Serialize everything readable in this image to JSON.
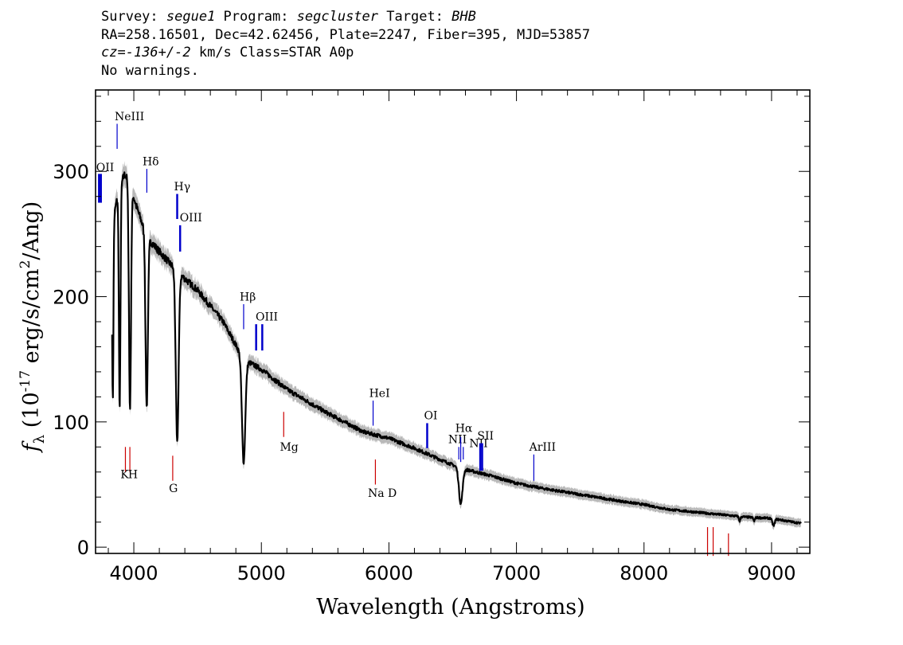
{
  "header": {
    "line1": {
      "survey_label": "Survey: ",
      "survey": "segue1",
      "program_label": " Program: ",
      "program": "segcluster",
      "target_label": " Target: ",
      "target": "BHB"
    },
    "line2": "RA=258.16501, Dec=42.62456, Plate=2247, Fiber=395, MJD=53857",
    "line3": {
      "cz_label": "cz=",
      "cz": "-136+/-2",
      "rest": " km/s Class=STAR A0p"
    },
    "line4": "No warnings."
  },
  "chart_data": {
    "type": "line",
    "xlabel": "Wavelength (Angstroms)",
    "ylabel": "f_λ (10^-17 erg/s/cm^2/Ang)",
    "xlim": [
      3700,
      9300
    ],
    "ylim": [
      -5,
      365
    ],
    "x_ticks": [
      4000,
      5000,
      6000,
      7000,
      8000,
      9000
    ],
    "y_ticks": [
      0,
      100,
      200,
      300
    ],
    "grid": false,
    "colors": {
      "flux": "#000000",
      "error_band": "#b8b8b8",
      "emission": "#0000cc",
      "absorption": "#cc0000"
    },
    "continuum": {
      "x": [
        3830,
        3870,
        3900,
        3930,
        3970,
        4020,
        4100,
        4200,
        4340,
        4500,
        4700,
        4861,
        5000,
        5200,
        5500,
        5800,
        6000,
        6200,
        6400,
        6563,
        6800,
        7000,
        7200,
        7500,
        7800,
        8000,
        8200,
        8500,
        8800,
        9000,
        9230
      ],
      "y": [
        258,
        278,
        290,
        298,
        290,
        272,
        248,
        236,
        220,
        205,
        180,
        150,
        142,
        126,
        108,
        92,
        87,
        79,
        70,
        63,
        57,
        51,
        47,
        42,
        37,
        34,
        30,
        27,
        24,
        23,
        19
      ]
    },
    "absorption_features": [
      {
        "center": 3835,
        "depth": 0.55,
        "width": 5
      },
      {
        "center": 3889,
        "depth": 0.62,
        "width": 6
      },
      {
        "center": 3970,
        "depth": 0.62,
        "width": 8
      },
      {
        "center": 4101,
        "depth": 0.55,
        "width": 9
      },
      {
        "center": 4340,
        "depth": 0.62,
        "width": 11
      },
      {
        "center": 4861,
        "depth": 0.55,
        "width": 13
      },
      {
        "center": 6563,
        "depth": 0.45,
        "width": 14
      },
      {
        "center": 8750,
        "depth": 0.15,
        "width": 6
      },
      {
        "center": 8863,
        "depth": 0.12,
        "width": 6
      },
      {
        "center": 9015,
        "depth": 0.25,
        "width": 9
      }
    ],
    "emission_lines": [
      {
        "label": "OII",
        "x": 3727,
        "y_top": 298,
        "y_bottom": 275,
        "label_x": 3705,
        "label_y": 300,
        "double": true
      },
      {
        "label": "NeIII",
        "x": 3869,
        "y_top": 338,
        "y_bottom": 318,
        "label_x": 3850,
        "label_y": 341
      },
      {
        "label": "Hδ",
        "x": 4102,
        "y_top": 302,
        "y_bottom": 283,
        "label_x": 4068,
        "label_y": 305
      },
      {
        "label": "Hγ",
        "x": 4340,
        "y_top": 282,
        "y_bottom": 262,
        "label_x": 4315,
        "label_y": 285
      },
      {
        "label": "OIII",
        "x": 4363,
        "y_top": 257,
        "y_bottom": 236,
        "label_x": 4360,
        "label_y": 260
      },
      {
        "label": "Hβ",
        "x": 4861,
        "y_top": 194,
        "y_bottom": 174,
        "label_x": 4830,
        "label_y": 197
      },
      {
        "label": "OIII",
        "x": 4959,
        "y_top": 178,
        "y_bottom": 157,
        "label_x": 4955,
        "label_y": 181,
        "double": true,
        "x2": 5007
      },
      {
        "label": "HeI",
        "x": 5876,
        "y_top": 117,
        "y_bottom": 97,
        "label_x": 5845,
        "label_y": 120
      },
      {
        "label": "OI",
        "x": 6300,
        "y_top": 99,
        "y_bottom": 79,
        "label_x": 6275,
        "label_y": 102
      },
      {
        "label": "NII",
        "x": 6548,
        "y_top": 80,
        "y_bottom": 70,
        "label_x": 6465,
        "label_y": 83
      },
      {
        "label": "Hα",
        "x": 6563,
        "y_top": 88,
        "y_bottom": 68,
        "label_x": 6520,
        "label_y": 92
      },
      {
        "label": "NII",
        "x": 6583,
        "y_top": 80,
        "y_bottom": 70,
        "label_x": 6630,
        "label_y": 80
      },
      {
        "label": "SII",
        "x": 6716,
        "y_top": 83,
        "y_bottom": 61,
        "label_x": 6693,
        "label_y": 86,
        "double": true,
        "x2": 6731
      },
      {
        "label": "ArIII",
        "x": 7136,
        "y_top": 74,
        "y_bottom": 53,
        "label_x": 7100,
        "label_y": 77
      }
    ],
    "absorption_lines": [
      {
        "label": "K",
        "x": 3934,
        "y_top": 80,
        "y_bottom": 60,
        "label_x": 3895,
        "label_y": 55
      },
      {
        "label": "H",
        "x": 3969,
        "y_top": 80,
        "y_bottom": 60,
        "label_x": 3955,
        "label_y": 55
      },
      {
        "label": "G",
        "x": 4305,
        "y_top": 73,
        "y_bottom": 53,
        "label_x": 4275,
        "label_y": 44
      },
      {
        "label": "Mg",
        "x": 5175,
        "y_top": 108,
        "y_bottom": 88,
        "label_x": 5145,
        "label_y": 77
      },
      {
        "label": "Na D",
        "x": 5894,
        "y_top": 70,
        "y_bottom": 50,
        "label_x": 5835,
        "label_y": 40
      },
      {
        "label": "",
        "x": 8498,
        "y_top": 16,
        "y_bottom": -7
      },
      {
        "label": "",
        "x": 8542,
        "y_top": 16,
        "y_bottom": -7
      },
      {
        "label": "",
        "x": 8662,
        "y_top": 11,
        "y_bottom": -7
      }
    ]
  }
}
